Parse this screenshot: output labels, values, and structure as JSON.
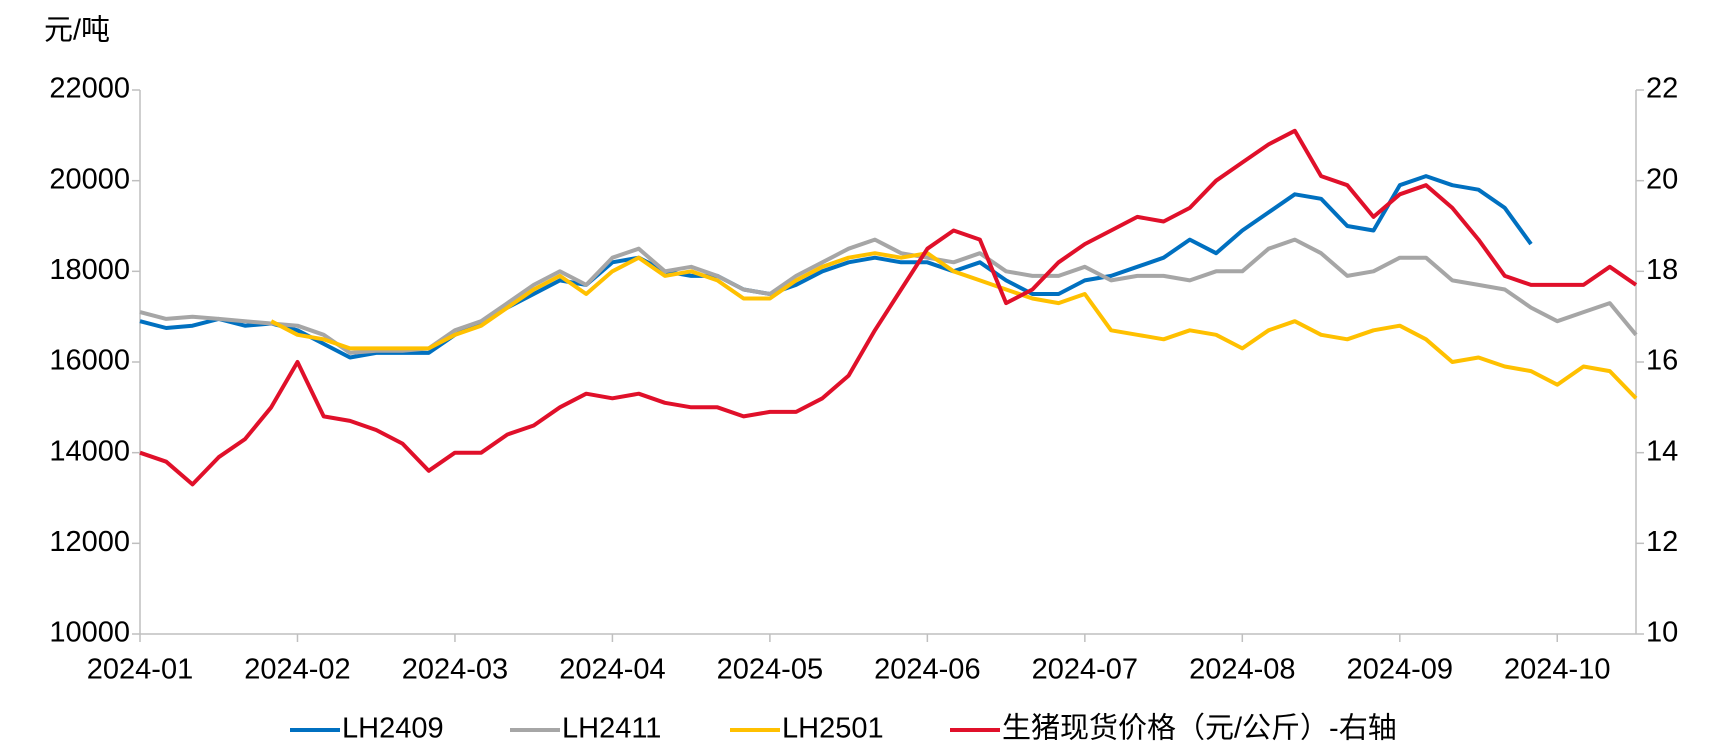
{
  "chart_data": {
    "type": "line",
    "y_label": "元/吨",
    "categories": [
      "2024-01",
      null,
      null,
      null,
      null,
      null,
      "2024-02",
      null,
      null,
      null,
      null,
      null,
      "2024-03",
      null,
      null,
      null,
      null,
      null,
      "2024-04",
      null,
      null,
      null,
      null,
      null,
      "2024-05",
      null,
      null,
      null,
      null,
      null,
      "2024-06",
      null,
      null,
      null,
      null,
      null,
      "2024-07",
      null,
      null,
      null,
      null,
      null,
      "2024-08",
      null,
      null,
      null,
      null,
      null,
      "2024-09",
      null,
      null,
      null,
      null,
      null,
      "2024-10",
      null,
      null,
      null
    ],
    "ylim": [
      10000,
      22000
    ],
    "yticks": [
      10000,
      12000,
      14000,
      16000,
      18000,
      20000,
      22000
    ],
    "y2lim": [
      10,
      22
    ],
    "y2ticks": [
      10,
      12,
      14,
      16,
      18,
      20,
      22
    ],
    "legend": "bottom",
    "series": [
      {
        "name": "LH2409",
        "color": "#0070c0",
        "values": [
          16900,
          16750,
          16800,
          16950,
          16800,
          16850,
          16700,
          16400,
          16100,
          16200,
          16200,
          16200,
          16600,
          16850,
          17200,
          17500,
          17800,
          17700,
          18200,
          18300,
          18000,
          17900,
          17900,
          17600,
          17500,
          17700,
          18000,
          18200,
          18300,
          18200,
          18200,
          18000,
          18200,
          17800,
          17500,
          17500,
          17800,
          17900,
          18100,
          18300,
          18700,
          18400,
          18900,
          19300,
          19700,
          19600,
          19000,
          18900,
          19900,
          20100,
          19900,
          19800,
          19400,
          18600,
          null,
          null,
          null,
          null
        ]
      },
      {
        "name": "LH2411",
        "color": "#a6a6a6",
        "values": [
          17100,
          16950,
          17000,
          16950,
          16900,
          16850,
          16800,
          16600,
          16200,
          16250,
          16250,
          16300,
          16700,
          16900,
          17300,
          17700,
          18000,
          17700,
          18300,
          18500,
          18000,
          18100,
          17900,
          17600,
          17500,
          17900,
          18200,
          18500,
          18700,
          18400,
          18300,
          18200,
          18400,
          18000,
          17900,
          17900,
          18100,
          17800,
          17900,
          17900,
          17800,
          18000,
          18000,
          18500,
          18700,
          18400,
          17900,
          18000,
          18300,
          18300,
          17800,
          17700,
          17600,
          17200,
          16900,
          17100,
          17300,
          16600
        ]
      },
      {
        "name": "LH2501",
        "color": "#ffc000",
        "values": [
          null,
          null,
          null,
          null,
          null,
          16900,
          16600,
          16500,
          16300,
          16300,
          16300,
          16300,
          16600,
          16800,
          17200,
          17600,
          17900,
          17500,
          18000,
          18300,
          17900,
          18000,
          17800,
          17400,
          17400,
          17800,
          18100,
          18300,
          18400,
          18300,
          18400,
          18000,
          17800,
          17600,
          17400,
          17300,
          17500,
          16700,
          16600,
          16500,
          16700,
          16600,
          16300,
          16700,
          16900,
          16600,
          16500,
          16700,
          16800,
          16500,
          16000,
          16100,
          15900,
          15800,
          15500,
          15900,
          15800,
          15200
        ]
      },
      {
        "name": "生猪现货价格（元/公斤）-右轴",
        "color": "#e0102a",
        "axis": "y2",
        "values": [
          14.0,
          13.8,
          13.3,
          13.9,
          14.3,
          15.0,
          16.0,
          14.8,
          14.7,
          14.5,
          14.2,
          13.6,
          14.0,
          14.0,
          14.4,
          14.6,
          15.0,
          15.3,
          15.2,
          15.3,
          15.1,
          15.0,
          15.0,
          14.8,
          14.9,
          14.9,
          15.2,
          15.7,
          16.7,
          17.6,
          18.5,
          18.9,
          18.7,
          17.3,
          17.6,
          18.2,
          18.6,
          18.9,
          19.2,
          19.1,
          19.4,
          20.0,
          20.4,
          20.8,
          21.1,
          20.1,
          19.9,
          19.2,
          19.7,
          19.9,
          19.4,
          18.7,
          17.9,
          17.7,
          17.7,
          17.7,
          18.1,
          17.7
        ]
      }
    ]
  }
}
